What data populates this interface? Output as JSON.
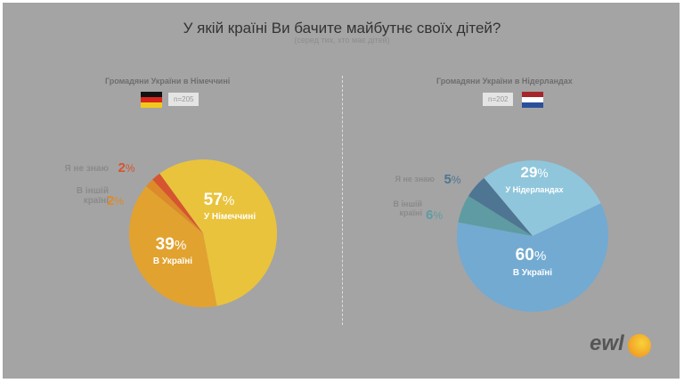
{
  "chart_data": [
    {
      "type": "pie",
      "title": "Громадяни України в Німеччині",
      "sample": "n=205",
      "flag": "germany",
      "slices": [
        {
          "label": "У Німеччині",
          "value": 57,
          "color": "#e9c33c"
        },
        {
          "label": "В Україні",
          "value": 39,
          "color": "#e2a22f"
        },
        {
          "label": "В іншій країні",
          "value": 2,
          "color": "#dc8a2a"
        },
        {
          "label": "Я не знаю",
          "value": 2,
          "color": "#d6542f"
        }
      ]
    },
    {
      "type": "pie",
      "title": "Громадяни України в Нідерландах",
      "sample": "n=202",
      "flag": "netherlands",
      "slices": [
        {
          "label": "У Нідерландах",
          "value": 29,
          "color": "#90c6dc"
        },
        {
          "label": "В Україні",
          "value": 60,
          "color": "#72aad2"
        },
        {
          "label": "В іншій країні",
          "value": 6,
          "color": "#5f9ba2"
        },
        {
          "label": "Я не знаю",
          "value": 5,
          "color": "#4e7592"
        }
      ]
    }
  ],
  "header": {
    "title": "У якій країні Ви бачите майбутнє своїх дітей?",
    "subtitle": "(серед тих, хто має дітей)"
  },
  "percent_sign": "%",
  "logo": "ewl"
}
